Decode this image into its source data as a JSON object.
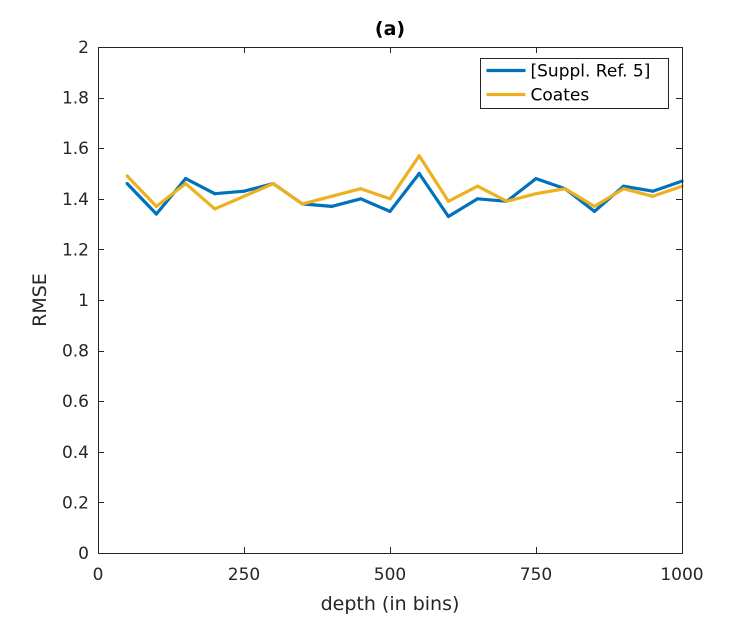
{
  "chart_data": {
    "type": "line",
    "title": "(a)",
    "xlabel": "depth (in bins)",
    "ylabel": "RMSE",
    "xlim": [
      0,
      1000
    ],
    "ylim": [
      0,
      2
    ],
    "xticks": [
      0,
      250,
      500,
      750,
      1000
    ],
    "xtick_labels": [
      "0",
      "250",
      "500",
      "750",
      "1000"
    ],
    "yticks": [
      0,
      0.2,
      0.4,
      0.6,
      0.8,
      1,
      1.2,
      1.4,
      1.6,
      1.8,
      2
    ],
    "ytick_labels": [
      "0",
      "0.2",
      "0.4",
      "0.6",
      "0.8",
      "1",
      "1.2",
      "1.4",
      "1.6",
      "1.8",
      "2"
    ],
    "grid": false,
    "legend_position": "top-right",
    "x": [
      50,
      100,
      150,
      200,
      250,
      300,
      350,
      400,
      450,
      500,
      550,
      600,
      650,
      700,
      750,
      800,
      850,
      900,
      950,
      1000
    ],
    "series": [
      {
        "name": "[Suppl. Ref. 5]",
        "color": "#0072BD",
        "values": [
          1.46,
          1.34,
          1.48,
          1.42,
          1.43,
          1.46,
          1.38,
          1.37,
          1.4,
          1.35,
          1.5,
          1.33,
          1.4,
          1.39,
          1.48,
          1.44,
          1.35,
          1.45,
          1.43,
          1.47
        ]
      },
      {
        "name": "Coates",
        "color": "#EDB120",
        "values": [
          1.49,
          1.37,
          1.46,
          1.36,
          1.41,
          1.46,
          1.38,
          1.41,
          1.44,
          1.4,
          1.57,
          1.39,
          1.45,
          1.39,
          1.42,
          1.44,
          1.37,
          1.44,
          1.41,
          1.45
        ]
      }
    ]
  }
}
